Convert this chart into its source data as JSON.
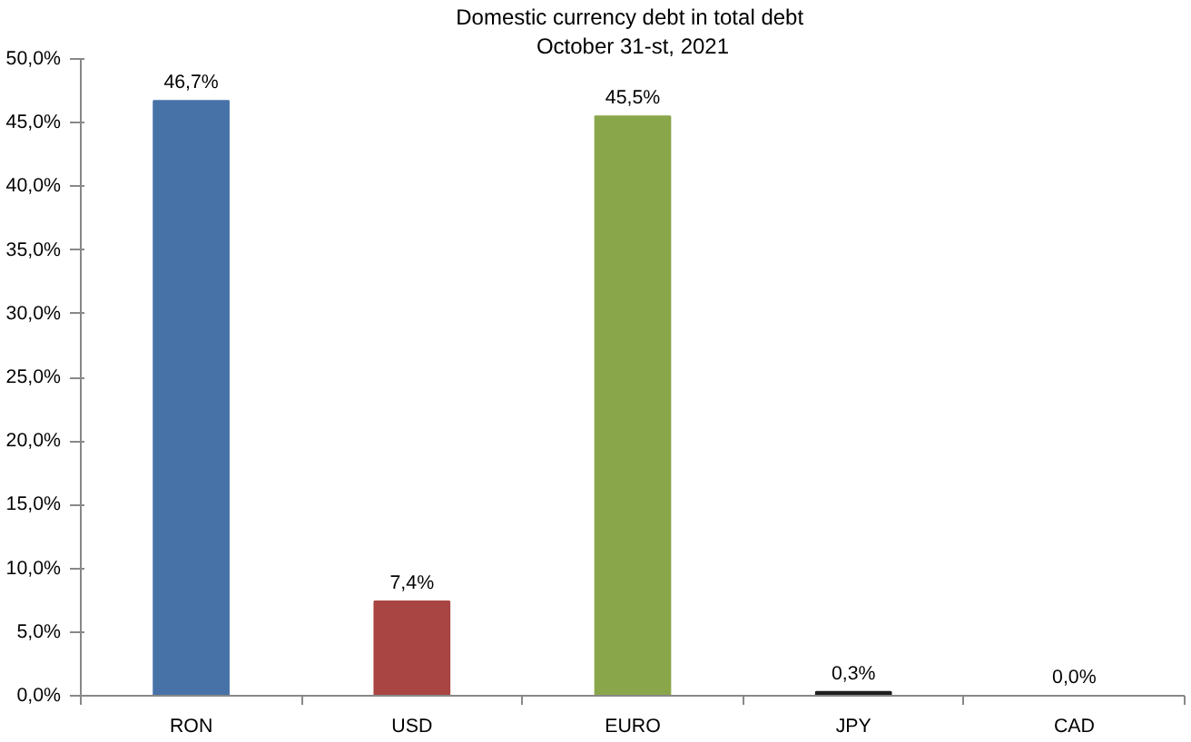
{
  "chart_data": {
    "type": "bar",
    "title": "Domestic currency debt  in total debt",
    "subtitle": "October 31-st, 2021",
    "categories": [
      "RON",
      "USD",
      "EURO",
      "JPY",
      "CAD"
    ],
    "values": [
      46.7,
      7.4,
      45.5,
      0.3,
      0.0
    ],
    "colors": [
      "#4672a8",
      "#a94542",
      "#89a64b",
      "#1f1f1f",
      "#2e8b3a"
    ],
    "value_labels": [
      "46,7%",
      "7,4%",
      "45,5%",
      "0,3%",
      "0,0%"
    ],
    "ylim": [
      0,
      50
    ],
    "yticks": [
      {
        "value": 0,
        "label": "0,0%"
      },
      {
        "value": 5,
        "label": "5,0%"
      },
      {
        "value": 10,
        "label": "10,0%"
      },
      {
        "value": 15,
        "label": "15,0%"
      },
      {
        "value": 20,
        "label": "20,0%"
      },
      {
        "value": 25,
        "label": "25,0%"
      },
      {
        "value": 30,
        "label": "30,0%"
      },
      {
        "value": 35,
        "label": "35,0%"
      },
      {
        "value": 40,
        "label": "40,0%"
      },
      {
        "value": 45,
        "label": "45,0%"
      },
      {
        "value": 50,
        "label": "50,0%"
      }
    ],
    "grid": false
  }
}
